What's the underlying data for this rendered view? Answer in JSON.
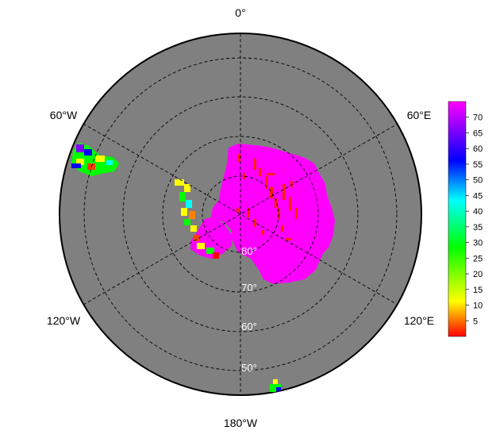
{
  "map": {
    "projection": "south-polar-stereographic",
    "background_color": "#808080",
    "land_color": "#ff00ff",
    "graticule_style": "dashed"
  },
  "longitude_labels": [
    {
      "id": "lon-0",
      "text": "0°"
    },
    {
      "id": "lon-60e",
      "text": "60°E"
    },
    {
      "id": "lon-60w",
      "text": "60°W"
    },
    {
      "id": "lon-120w",
      "text": "120°W"
    },
    {
      "id": "lon-120e",
      "text": "120°E"
    },
    {
      "id": "lon-180w",
      "text": "180°W"
    }
  ],
  "latitude_labels": [
    {
      "id": "lat-80",
      "text": "80°"
    },
    {
      "id": "lat-70",
      "text": "70°"
    },
    {
      "id": "lat-60",
      "text": "60°"
    },
    {
      "id": "lat-50",
      "text": "50°"
    }
  ],
  "colorbar": {
    "ticks": [
      "5",
      "10",
      "15",
      "20",
      "25",
      "30",
      "35",
      "40",
      "45",
      "50",
      "55",
      "60",
      "65",
      "70"
    ],
    "min": 0,
    "max": 75,
    "colors": [
      "#ff0000",
      "#ffff00",
      "#00ff00",
      "#00ffff",
      "#0000ff",
      "#ff00ff"
    ]
  }
}
